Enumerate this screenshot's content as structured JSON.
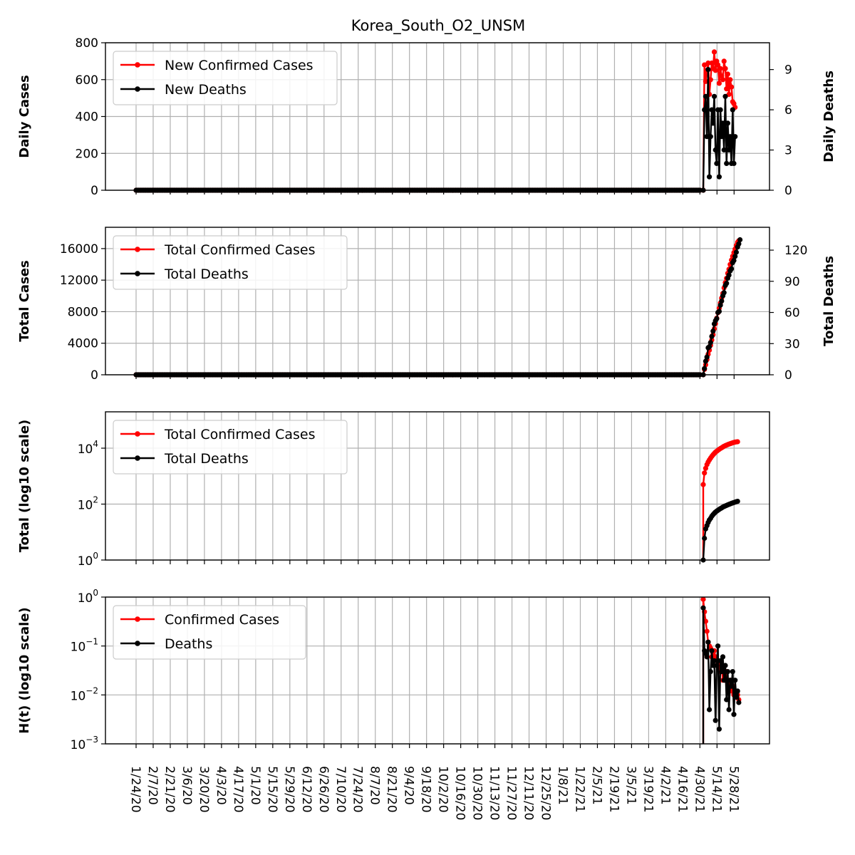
{
  "chart_data": {
    "title": "Korea_South_O2_UNSM",
    "type": "line",
    "x_tick_labels": [
      "1/24/20",
      "2/7/20",
      "2/21/20",
      "3/6/20",
      "3/20/20",
      "4/3/20",
      "4/17/20",
      "5/1/20",
      "5/15/20",
      "5/29/20",
      "6/12/20",
      "6/26/20",
      "7/10/20",
      "7/24/20",
      "8/7/20",
      "8/21/20",
      "9/4/20",
      "9/18/20",
      "10/2/20",
      "10/16/20",
      "10/30/20",
      "11/13/20",
      "11/27/20",
      "12/11/20",
      "12/25/20",
      "1/8/21",
      "1/22/21",
      "2/5/21",
      "2/19/21",
      "3/5/21",
      "3/19/21",
      "4/2/21",
      "4/16/21",
      "4/30/21",
      "5/14/21",
      "5/28/21"
    ],
    "x_tick_step_days": 14,
    "panels": [
      {
        "id": "daily",
        "ylabel": "Daily Cases",
        "ylabel_right": "Daily Deaths",
        "ylim": [
          0,
          800
        ],
        "yticks": [
          "0",
          "200",
          "400",
          "600",
          "800"
        ],
        "ylim_right": [
          0,
          11
        ],
        "yticks_right": [
          "0",
          "3",
          "6",
          "9"
        ],
        "legend": [
          "New Confirmed Cases",
          "New Deaths"
        ],
        "series": [
          {
            "name": "New Confirmed Cases",
            "color": "#ff0000",
            "axis": "left",
            "pre_zero_days": [
              0,
              462
            ],
            "values": [
              0,
              680,
              590,
              650,
              690,
              520,
              600,
              690,
              660,
              750,
              650,
              700,
              680,
              580,
              660,
              620,
              600,
              700,
              660,
              550,
              630,
              520,
              600,
              560,
              480,
              470,
              450
            ]
          },
          {
            "name": "New Deaths",
            "color": "#000000",
            "axis": "right",
            "pre_zero_days": [
              0,
              462
            ],
            "values": [
              0,
              6,
              7,
              4,
              9,
              1,
              4,
              6,
              5,
              7,
              3,
              2,
              6,
              1,
              6,
              4,
              5,
              3,
              7,
              2,
              5,
              3,
              4,
              2,
              6,
              2,
              4
            ]
          }
        ]
      },
      {
        "id": "total",
        "ylabel": "Total Cases",
        "ylabel_right": "Total Deaths",
        "ylim": [
          0,
          18700
        ],
        "yticks": [
          "0",
          "4000",
          "8000",
          "12000",
          "16000"
        ],
        "ylim_right": [
          0,
          142
        ],
        "yticks_right": [
          "0",
          "30",
          "60",
          "90",
          "120"
        ],
        "legend": [
          "Total Confirmed Cases",
          "Total Deaths"
        ],
        "series": [
          {
            "name": "Total Confirmed Cases",
            "color": "#ff0000",
            "axis": "left",
            "pre_zero_days": [
              0,
              462
            ],
            "values": [
              0,
              680,
              1270,
              1920,
              2610,
              3130,
              3730,
              4420,
              5080,
              5830,
              6480,
              7180,
              7860,
              8440,
              9100,
              9720,
              10320,
              11020,
              11680,
              12230,
              12860,
              13380,
              13980,
              14540,
              15020,
              15490,
              15940,
              16400,
              16800,
              17000
            ]
          },
          {
            "name": "Total Deaths",
            "color": "#000000",
            "axis": "right",
            "pre_zero_days": [
              0,
              462
            ],
            "values": [
              0,
              6,
              13,
              17,
              26,
              27,
              31,
              37,
              42,
              49,
              52,
              54,
              60,
              61,
              67,
              71,
              76,
              79,
              86,
              88,
              93,
              96,
              100,
              102,
              108,
              110,
              114,
              118,
              123,
              126,
              130
            ]
          }
        ]
      },
      {
        "id": "log",
        "ylabel": "Total (log10 scale)",
        "scale": "log",
        "ylim_log10": [
          0,
          5.3
        ],
        "yticks": [
          {
            "base": "10",
            "exp": "0",
            "value": 1
          },
          {
            "base": "10",
            "exp": "2",
            "value": 100
          },
          {
            "base": "10",
            "exp": "4",
            "value": 10000
          }
        ],
        "legend": [
          "Total Confirmed Cases",
          "Total Deaths"
        ],
        "series": [
          {
            "name": "Total Confirmed Cases",
            "color": "#ff0000",
            "values": [
              500,
              1300,
              1900,
              2600,
              3200,
              3800,
              4400,
              5100,
              5800,
              6500,
              7200,
              7800,
              8400,
              9100,
              9700,
              10300,
              11000,
              11700,
              12300,
              12900,
              13400,
              14000,
              14500,
              15000,
              15500,
              16000,
              16500,
              16800,
              17000
            ]
          },
          {
            "name": "Total Deaths",
            "color": "#000000",
            "values": [
              1,
              6,
              13,
              17,
              22,
              27,
              31,
              37,
              42,
              47,
              52,
              56,
              60,
              65,
              69,
              73,
              78,
              82,
              86,
              90,
              94,
              98,
              102,
              106,
              110,
              114,
              118,
              122,
              126
            ]
          }
        ]
      },
      {
        "id": "hazard",
        "ylabel": "H(t) (log10 scale)",
        "scale": "log",
        "ylim_log10": [
          -3,
          0
        ],
        "yticks": [
          {
            "base": "10",
            "exp": "−3",
            "value": 0.001
          },
          {
            "base": "10",
            "exp": "−2",
            "value": 0.01
          },
          {
            "base": "10",
            "exp": "−1",
            "value": 0.1
          },
          {
            "base": "10",
            "exp": "0",
            "value": 1
          }
        ],
        "legend": [
          "Confirmed Cases",
          "Deaths"
        ],
        "series": [
          {
            "name": "Confirmed Cases",
            "color": "#ff0000",
            "values": [
              0.9,
              0.5,
              0.32,
              0.2,
              0.12,
              0.1,
              0.09,
              0.06,
              0.06,
              0.08,
              0.06,
              0.05,
              0.05,
              0.04,
              0.03,
              0.04,
              0.02,
              0.03,
              0.02,
              0.03,
              0.02,
              0.015,
              0.02,
              0.012,
              0.015,
              0.01,
              0.012,
              0.009,
              0.01,
              0.008
            ]
          },
          {
            "name": "Deaths",
            "color": "#000000",
            "values": [
              0.6,
              0.08,
              0.07,
              0.06,
              0.12,
              0.005,
              0.03,
              0.08,
              0.04,
              0.05,
              0.003,
              0.04,
              0.1,
              0.002,
              0.05,
              0.03,
              0.06,
              0.02,
              0.04,
              0.008,
              0.03,
              0.005,
              0.02,
              0.015,
              0.03,
              0.004,
              0.02,
              0.009,
              0.012,
              0.007
            ]
          }
        ]
      }
    ]
  }
}
